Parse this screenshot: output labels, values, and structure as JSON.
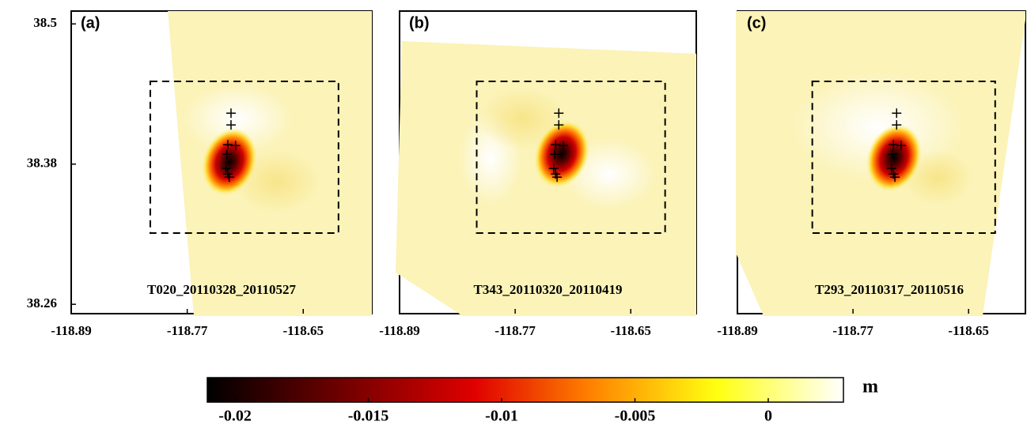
{
  "chart_data": [
    {
      "type": "map",
      "panel_label": "(a)",
      "track": "T020_20110328_20110527",
      "xlim": [
        -118.89,
        -118.579
      ],
      "ylim": [
        38.252,
        38.511
      ],
      "xticks": [
        -118.89,
        -118.77,
        -118.65
      ],
      "yticks": [
        38.5,
        38.38,
        38.26
      ],
      "events": {
        "x": [
          -118.7247,
          -118.7247,
          -118.728,
          -118.72,
          -118.729,
          -118.73,
          -118.728,
          -118.7265
        ],
        "y": [
          38.4236,
          38.4135,
          38.3966,
          38.3959,
          38.3884,
          38.3763,
          38.3715,
          38.3688
        ]
      }
    },
    {
      "type": "map",
      "panel_label": "(b)",
      "track": "T343_20110320_20110419",
      "xlim": [
        -118.89,
        -118.582
      ],
      "ylim": [
        38.252,
        38.511
      ],
      "xticks": [
        -118.89,
        -118.77,
        -118.65
      ],
      "events": {
        "x": [
          -118.7247,
          -118.7247,
          -118.728,
          -118.72,
          -118.729,
          -118.73,
          -118.728,
          -118.7265
        ],
        "y": [
          38.4236,
          38.4135,
          38.3966,
          38.3959,
          38.3884,
          38.3763,
          38.3715,
          38.3688
        ]
      }
    },
    {
      "type": "map",
      "panel_label": "(c)",
      "track": "T293_20110317_20110516",
      "xlim": [
        -118.89,
        -118.591
      ],
      "ylim": [
        38.252,
        38.511
      ],
      "xticks": [
        -118.89,
        -118.77,
        -118.65
      ],
      "events": {
        "x": [
          -118.7247,
          -118.7247,
          -118.728,
          -118.72,
          -118.729,
          -118.73,
          -118.728,
          -118.7265
        ],
        "y": [
          38.4236,
          38.4135,
          38.3966,
          38.3959,
          38.3884,
          38.3763,
          38.3715,
          38.3688
        ]
      }
    },
    {
      "type": "colorbar",
      "unit": "m",
      "xlim": [
        -0.02104,
        0.00282
      ],
      "xticks": [
        -0.02,
        -0.015,
        -0.01,
        -0.005,
        0
      ]
    }
  ]
}
